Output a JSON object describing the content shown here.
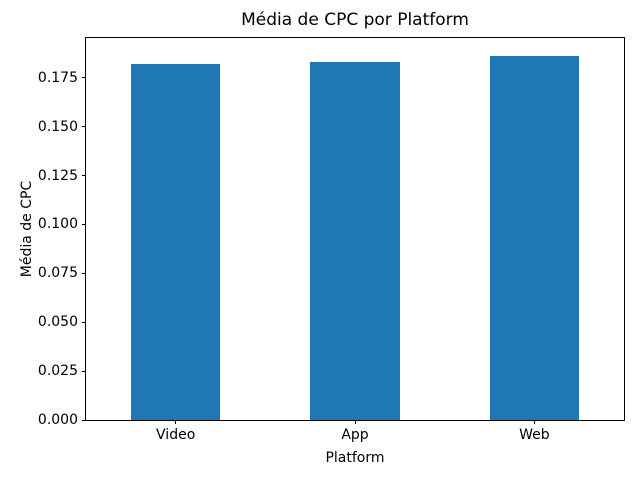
{
  "chart_data": {
    "type": "bar",
    "title": "Média de CPC por Platform",
    "xlabel": "Platform",
    "ylabel": "Média de CPC",
    "categories": [
      "Video",
      "App",
      "Web"
    ],
    "values": [
      0.182,
      0.183,
      0.186
    ],
    "ylim": [
      0,
      0.1953
    ],
    "yticks": [
      0,
      0.025,
      0.05,
      0.075,
      0.1,
      0.125,
      0.15,
      0.175
    ],
    "ytick_labels": [
      "0.000",
      "0.025",
      "0.050",
      "0.075",
      "0.100",
      "0.125",
      "0.150",
      "0.175"
    ],
    "bar_color": "#1f77b4",
    "bar_width_fraction": 0.5,
    "grid": false,
    "legend_position": "none"
  }
}
